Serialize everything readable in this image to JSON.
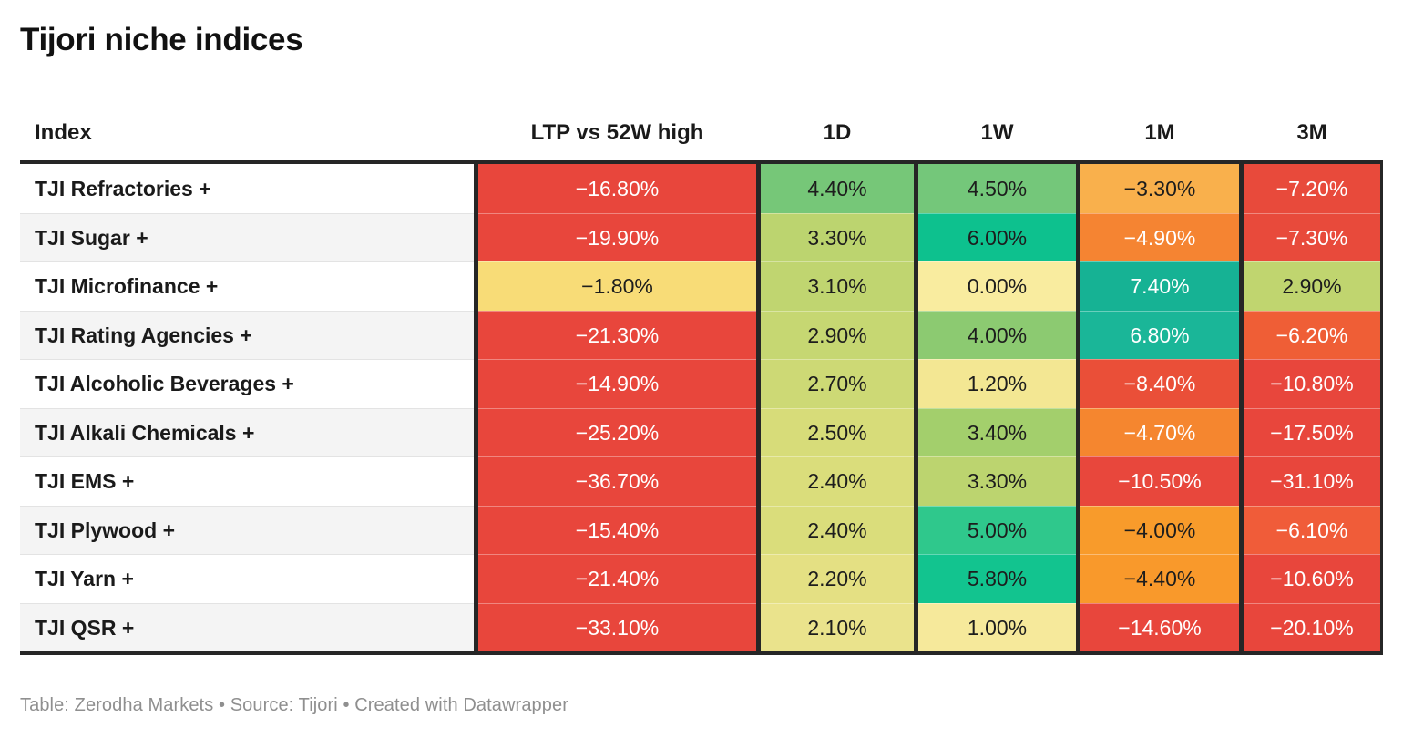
{
  "title": "Tijori niche indices",
  "footer": "Table: Zerodha Markets • Source: Tijori • Created with Datawrapper",
  "table": {
    "columns": [
      "Index",
      "LTP vs 52W high",
      "1D",
      "1W",
      "1M",
      "3M"
    ],
    "text_dark": "#1d1d1d",
    "text_light": "#ffffff",
    "rows": [
      {
        "label": "TJI Refractories +",
        "cells": [
          {
            "text": "−16.80%",
            "bg": "#e8463c",
            "color": "#ffffff"
          },
          {
            "text": "4.40%",
            "bg": "#76c778",
            "color": "#1d1d1d"
          },
          {
            "text": "4.50%",
            "bg": "#74c77a",
            "color": "#1d1d1d"
          },
          {
            "text": "−3.30%",
            "bg": "#f9b04c",
            "color": "#1d1d1d"
          },
          {
            "text": "−7.20%",
            "bg": "#e84a3b",
            "color": "#ffffff"
          }
        ]
      },
      {
        "label": "TJI Sugar +",
        "cells": [
          {
            "text": "−19.90%",
            "bg": "#e8463c",
            "color": "#ffffff"
          },
          {
            "text": "3.30%",
            "bg": "#bcd46f",
            "color": "#1d1d1d"
          },
          {
            "text": "6.00%",
            "bg": "#0dc18e",
            "color": "#1d1d1d"
          },
          {
            "text": "−4.90%",
            "bg": "#f58432",
            "color": "#ffffff"
          },
          {
            "text": "−7.30%",
            "bg": "#e84a3b",
            "color": "#ffffff"
          }
        ]
      },
      {
        "label": "TJI Microfinance +",
        "cells": [
          {
            "text": "−1.80%",
            "bg": "#f8dc77",
            "color": "#1d1d1d"
          },
          {
            "text": "3.10%",
            "bg": "#c0d570",
            "color": "#1d1d1d"
          },
          {
            "text": "0.00%",
            "bg": "#f9ec9f",
            "color": "#1d1d1d"
          },
          {
            "text": "7.40%",
            "bg": "#16b294",
            "color": "#ffffff"
          },
          {
            "text": "2.90%",
            "bg": "#c0d56f",
            "color": "#1d1d1d"
          }
        ]
      },
      {
        "label": "TJI Rating Agencies +",
        "cells": [
          {
            "text": "−21.30%",
            "bg": "#e8463c",
            "color": "#ffffff"
          },
          {
            "text": "2.90%",
            "bg": "#c6d772",
            "color": "#1d1d1d"
          },
          {
            "text": "4.00%",
            "bg": "#8cca71",
            "color": "#1d1d1d"
          },
          {
            "text": "6.80%",
            "bg": "#1ab698",
            "color": "#ffffff"
          },
          {
            "text": "−6.20%",
            "bg": "#ef5e36",
            "color": "#ffffff"
          }
        ]
      },
      {
        "label": "TJI Alcoholic Beverages +",
        "cells": [
          {
            "text": "−14.90%",
            "bg": "#e8463c",
            "color": "#ffffff"
          },
          {
            "text": "2.70%",
            "bg": "#cdd975",
            "color": "#1d1d1d"
          },
          {
            "text": "1.20%",
            "bg": "#f3e793",
            "color": "#1d1d1d"
          },
          {
            "text": "−8.40%",
            "bg": "#ea4f38",
            "color": "#ffffff"
          },
          {
            "text": "−10.80%",
            "bg": "#e8463c",
            "color": "#ffffff"
          }
        ]
      },
      {
        "label": "TJI Alkali Chemicals +",
        "cells": [
          {
            "text": "−25.20%",
            "bg": "#e8463c",
            "color": "#ffffff"
          },
          {
            "text": "2.50%",
            "bg": "#d7dc79",
            "color": "#1d1d1d"
          },
          {
            "text": "3.40%",
            "bg": "#a3cf6c",
            "color": "#1d1d1d"
          },
          {
            "text": "−4.70%",
            "bg": "#f5862f",
            "color": "#ffffff"
          },
          {
            "text": "−17.50%",
            "bg": "#e8463c",
            "color": "#ffffff"
          }
        ]
      },
      {
        "label": "TJI EMS +",
        "cells": [
          {
            "text": "−36.70%",
            "bg": "#e8463c",
            "color": "#ffffff"
          },
          {
            "text": "2.40%",
            "bg": "#dadd7b",
            "color": "#1d1d1d"
          },
          {
            "text": "3.30%",
            "bg": "#bcd46f",
            "color": "#1d1d1d"
          },
          {
            "text": "−10.50%",
            "bg": "#e8473c",
            "color": "#ffffff"
          },
          {
            "text": "−31.10%",
            "bg": "#e8463c",
            "color": "#ffffff"
          }
        ]
      },
      {
        "label": "TJI Plywood +",
        "cells": [
          {
            "text": "−15.40%",
            "bg": "#e8463c",
            "color": "#ffffff"
          },
          {
            "text": "2.40%",
            "bg": "#dadd7b",
            "color": "#1d1d1d"
          },
          {
            "text": "5.00%",
            "bg": "#2fc88c",
            "color": "#1d1d1d"
          },
          {
            "text": "−4.00%",
            "bg": "#f89b2b",
            "color": "#1d1d1d"
          },
          {
            "text": "−6.10%",
            "bg": "#f05c39",
            "color": "#ffffff"
          }
        ]
      },
      {
        "label": "TJI Yarn +",
        "cells": [
          {
            "text": "−21.40%",
            "bg": "#e8463c",
            "color": "#ffffff"
          },
          {
            "text": "2.20%",
            "bg": "#e4e083",
            "color": "#1d1d1d"
          },
          {
            "text": "5.80%",
            "bg": "#12c48f",
            "color": "#1d1d1d"
          },
          {
            "text": "−4.40%",
            "bg": "#f9992b",
            "color": "#1d1d1d"
          },
          {
            "text": "−10.60%",
            "bg": "#e8463c",
            "color": "#ffffff"
          }
        ]
      },
      {
        "label": "TJI QSR +",
        "cells": [
          {
            "text": "−33.10%",
            "bg": "#e8463c",
            "color": "#ffffff"
          },
          {
            "text": "2.10%",
            "bg": "#eae38c",
            "color": "#1d1d1d"
          },
          {
            "text": "1.00%",
            "bg": "#f6e99b",
            "color": "#1d1d1d"
          },
          {
            "text": "−14.60%",
            "bg": "#e8463c",
            "color": "#ffffff"
          },
          {
            "text": "−20.10%",
            "bg": "#e8463c",
            "color": "#ffffff"
          }
        ]
      }
    ]
  },
  "chart_data": {
    "type": "table",
    "title": "Tijori niche indices",
    "columns": [
      "Index",
      "LTP vs 52W high",
      "1D",
      "1W",
      "1M",
      "3M"
    ],
    "rows": [
      [
        "TJI Refractories +",
        -16.8,
        4.4,
        4.5,
        -3.3,
        -7.2
      ],
      [
        "TJI Sugar +",
        -19.9,
        3.3,
        6.0,
        -4.9,
        -7.3
      ],
      [
        "TJI Microfinance +",
        -1.8,
        3.1,
        0.0,
        7.4,
        2.9
      ],
      [
        "TJI Rating Agencies +",
        -21.3,
        2.9,
        4.0,
        6.8,
        -6.2
      ],
      [
        "TJI Alcoholic Beverages +",
        -14.9,
        2.7,
        1.2,
        -8.4,
        -10.8
      ],
      [
        "TJI Alkali Chemicals +",
        -25.2,
        2.5,
        3.4,
        -4.7,
        -17.5
      ],
      [
        "TJI EMS +",
        -36.7,
        2.4,
        3.3,
        -10.5,
        -31.1
      ],
      [
        "TJI Plywood +",
        -15.4,
        2.4,
        5.0,
        -4.0,
        -6.1
      ],
      [
        "TJI Yarn +",
        -21.4,
        2.2,
        5.8,
        -4.4,
        -10.6
      ],
      [
        "TJI QSR +",
        -33.1,
        2.1,
        1.0,
        -14.6,
        -20.1
      ]
    ],
    "value_unit": "%",
    "color_scale": "red-yellow-green heatmap, negative=red/orange, near-zero=yellow, positive=green/teal",
    "legend_position": "none",
    "grid": "dark column separators #262626, zebra striping on Index column"
  }
}
